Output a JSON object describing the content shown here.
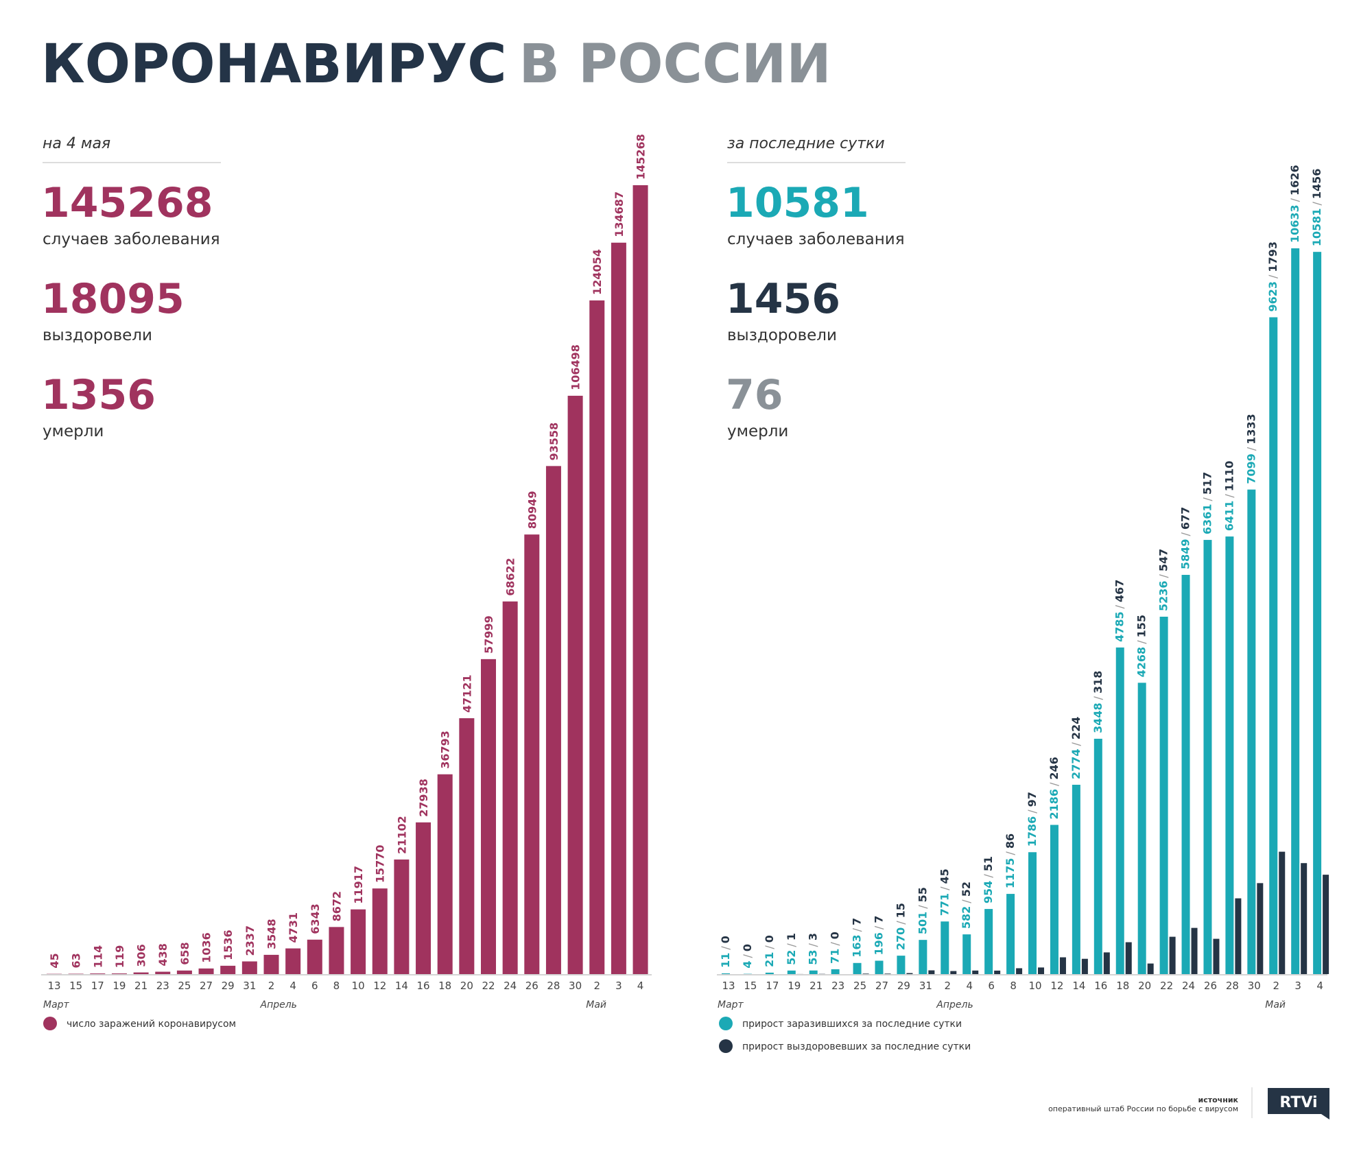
{
  "header": {
    "title": [
      "КОРОНАВИРУС",
      "В РОССИИ"
    ]
  },
  "summary": [
    {
      "caption": "на 4 мая",
      "stats": [
        {
          "value": 145268,
          "label": "случаев заболевания",
          "color": "#a0335e"
        },
        {
          "value": 18095,
          "label": "выздоровели",
          "color": "#a0335e"
        },
        {
          "value": 1356,
          "label": "умерли",
          "color": "#a0335e"
        }
      ]
    },
    {
      "caption": "за последние сутки",
      "stats": [
        {
          "value": 10581,
          "label": "случаев заболевания",
          "color": "#1ba9b5"
        },
        {
          "value": 1456,
          "label": "выздоровели",
          "color": "#253445"
        },
        {
          "value": 76,
          "label": "умерли",
          "color": "#8a9197"
        }
      ]
    }
  ],
  "chart_data": [
    {
      "type": "bar",
      "categories": [
        "13",
        "15",
        "17",
        "19",
        "21",
        "23",
        "25",
        "27",
        "29",
        "31",
        "2",
        "4",
        "6",
        "8",
        "10",
        "12",
        "14",
        "16",
        "18",
        "20",
        "22",
        "24",
        "26",
        "28",
        "30",
        "2",
        "3",
        "4"
      ],
      "months": [
        "Март",
        "Апрель",
        "Май"
      ],
      "series": [
        {
          "name": "число заражений коронавирусом",
          "color": "#a0335e",
          "values": [
            45,
            63,
            114,
            119,
            306,
            438,
            658,
            1036,
            1536,
            2337,
            3548,
            4731,
            6343,
            8672,
            11917,
            15770,
            21102,
            27938,
            36793,
            47121,
            57999,
            68622,
            80949,
            93558,
            106498,
            124054,
            134687,
            145268
          ]
        }
      ]
    },
    {
      "type": "grouped_bar",
      "categories": [
        "13",
        "15",
        "17",
        "19",
        "21",
        "23",
        "25",
        "27",
        "29",
        "31",
        "2",
        "4",
        "6",
        "8",
        "10",
        "12",
        "14",
        "16",
        "18",
        "20",
        "22",
        "24",
        "26",
        "28",
        "30",
        "2",
        "3",
        "4"
      ],
      "months": [
        "Март",
        "Апрель",
        "Май"
      ],
      "label_separator": "/",
      "series": [
        {
          "name": "прирост заразившихся за последние сутки",
          "color": "#1ba9b5",
          "values": [
            11,
            4,
            21,
            52,
            53,
            71,
            163,
            196,
            270,
            501,
            771,
            582,
            954,
            1175,
            1786,
            2186,
            2774,
            3448,
            4785,
            4268,
            5236,
            5849,
            6361,
            6411,
            7099,
            9623,
            10633,
            10581
          ]
        },
        {
          "name": "прирост выздоровевших за последние сутки",
          "color": "#253445",
          "values": [
            0,
            0,
            0,
            1,
            3,
            0,
            7,
            7,
            15,
            55,
            45,
            52,
            51,
            86,
            97,
            246,
            224,
            318,
            467,
            155,
            547,
            677,
            517,
            1110,
            1333,
            1793,
            1626,
            1456
          ]
        }
      ]
    }
  ],
  "source": {
    "title": "источник",
    "text": "оперативный штаб России по борьбе с вирусом"
  },
  "logo": "RTVi"
}
